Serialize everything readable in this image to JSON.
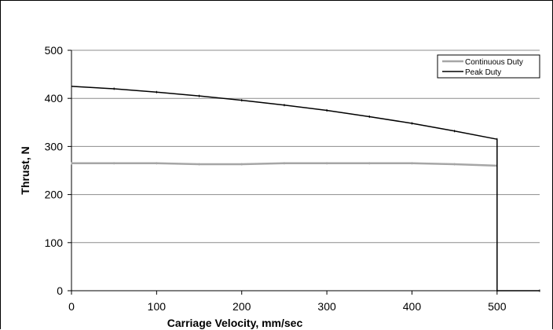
{
  "chart_data": {
    "type": "line",
    "title": "",
    "xlabel": "Carriage Velocity, mm/sec",
    "ylabel": "Thrust, N",
    "xlim": [
      0,
      550
    ],
    "ylim": [
      0,
      500
    ],
    "x_ticks": [
      0,
      100,
      200,
      300,
      400,
      500
    ],
    "y_ticks": [
      0,
      100,
      200,
      300,
      400,
      500
    ],
    "grid": "horizontal",
    "legend_position": "top-right",
    "series": [
      {
        "name": "Continuous Duty",
        "color": "#a6a6a6",
        "points": [
          [
            0,
            265
          ],
          [
            50,
            265
          ],
          [
            100,
            265
          ],
          [
            150,
            263
          ],
          [
            200,
            263
          ],
          [
            250,
            265
          ],
          [
            300,
            265
          ],
          [
            350,
            265
          ],
          [
            400,
            265
          ],
          [
            450,
            263
          ],
          [
            500,
            260
          ]
        ]
      },
      {
        "name": "Peak Duty",
        "color": "#000000",
        "points": [
          [
            0,
            425
          ],
          [
            50,
            420
          ],
          [
            100,
            413
          ],
          [
            150,
            405
          ],
          [
            200,
            396
          ],
          [
            250,
            386
          ],
          [
            300,
            375
          ],
          [
            350,
            362
          ],
          [
            400,
            348
          ],
          [
            450,
            332
          ],
          [
            500,
            315
          ],
          [
            500,
            0
          ],
          [
            550,
            0
          ]
        ]
      }
    ]
  }
}
